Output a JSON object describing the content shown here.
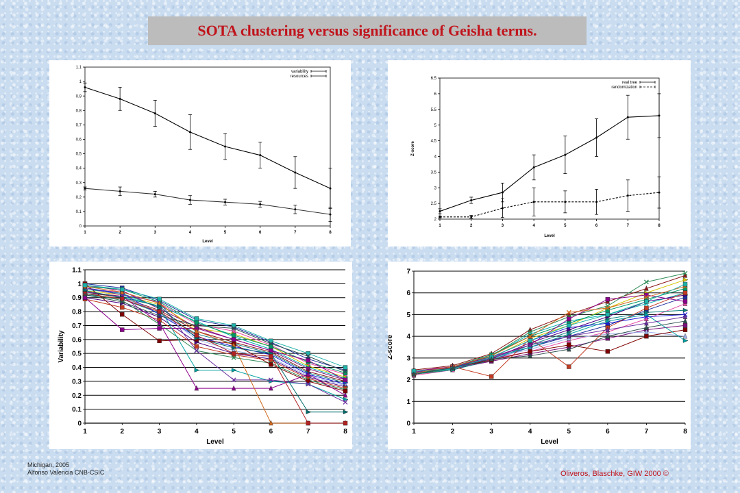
{
  "slide": {
    "title": "SOTA clustering versus significance of Geisha terms.",
    "footer_left_line1": "Michigan, 2005",
    "footer_left_line2": "Alfonso Valencia CNB-CSIC",
    "footer_right": "Oliveros, Blaschke, GIW 2000 ©"
  },
  "chart_data": [
    {
      "type": "line",
      "title": "",
      "xlabel": "Level",
      "ylabel": "",
      "x": [
        1,
        2,
        3,
        4,
        5,
        6,
        7,
        8
      ],
      "xlim": [
        1,
        8
      ],
      "ylim": [
        0,
        1.1
      ],
      "yticks": [
        "0",
        "0.1",
        "0.2",
        "0.3",
        "0.4",
        "0.5",
        "0.6",
        "0.7",
        "0.8",
        "0.9",
        "1",
        "1.1"
      ],
      "legend_position": "top-right",
      "grid": false,
      "series": [
        {
          "name": "variability",
          "values": [
            0.96,
            0.88,
            0.78,
            0.65,
            0.55,
            0.49,
            0.37,
            0.26
          ],
          "err": [
            0.03,
            0.08,
            0.09,
            0.12,
            0.09,
            0.09,
            0.11,
            0.14
          ],
          "color": "#000000"
        },
        {
          "name": "resources",
          "values": [
            0.26,
            0.24,
            0.22,
            0.18,
            0.165,
            0.15,
            0.115,
            0.08
          ],
          "err": [
            0.01,
            0.03,
            0.02,
            0.03,
            0.02,
            0.02,
            0.03,
            0.05
          ],
          "color": "#333333"
        }
      ]
    },
    {
      "type": "line",
      "title": "",
      "xlabel": "Level",
      "ylabel": "Z-score",
      "x": [
        1,
        2,
        3,
        4,
        5,
        6,
        7,
        8
      ],
      "xlim": [
        1,
        8
      ],
      "ylim": [
        2,
        6.5
      ],
      "yticks": [
        "2",
        "2.5",
        "3",
        "3.5",
        "4",
        "4.5",
        "5",
        "5.5",
        "6",
        "6.5"
      ],
      "legend_position": "top-right",
      "grid": false,
      "series": [
        {
          "name": "real tree",
          "values": [
            2.25,
            2.6,
            2.85,
            3.65,
            4.05,
            4.6,
            5.25,
            5.3
          ],
          "err": [
            0.08,
            0.1,
            0.3,
            0.4,
            0.6,
            0.6,
            0.7,
            0.7
          ],
          "color": "#000000",
          "dash": ""
        },
        {
          "name": "randomization",
          "values": [
            2.07,
            2.07,
            2.35,
            2.55,
            2.55,
            2.55,
            2.75,
            2.85
          ],
          "err": [
            0.03,
            0.05,
            0.3,
            0.45,
            0.35,
            0.4,
            0.5,
            0.5
          ],
          "color": "#000000",
          "dash": "3,2"
        }
      ]
    },
    {
      "type": "line",
      "title": "",
      "xlabel": "Level",
      "ylabel": "Variability",
      "x": [
        1,
        2,
        3,
        4,
        5,
        6,
        7,
        8
      ],
      "xlim": [
        1,
        8
      ],
      "ylim": [
        0,
        1.1
      ],
      "yticks": [
        "0",
        "0.1",
        "0.2",
        "0.3",
        "0.4",
        "0.5",
        "0.6",
        "0.7",
        "0.8",
        "0.9",
        "1",
        "1.1"
      ],
      "grid": true,
      "series": [
        {
          "values": [
            1.0,
            0.97,
            0.88,
            0.74,
            0.69,
            0.58,
            0.46,
            0.38
          ],
          "color": "#1f2f9e",
          "marker": "square"
        },
        {
          "values": [
            0.96,
            0.94,
            0.86,
            0.71,
            0.66,
            0.56,
            0.43,
            0.35
          ],
          "color": "#e64ca6",
          "marker": "triangle"
        },
        {
          "values": [
            0.95,
            0.92,
            0.85,
            0.68,
            0.64,
            0.55,
            0.41,
            0.33
          ],
          "color": "#d6c200",
          "marker": "tri-right"
        },
        {
          "values": [
            0.93,
            0.91,
            0.84,
            0.73,
            0.62,
            0.53,
            0.4,
            0.32
          ],
          "color": "#00b0b0",
          "marker": "x"
        },
        {
          "values": [
            0.99,
            0.95,
            0.82,
            0.69,
            0.6,
            0.52,
            0.39,
            0.31
          ],
          "color": "#7a0f7a",
          "marker": "square"
        },
        {
          "values": [
            0.94,
            0.9,
            0.81,
            0.66,
            0.58,
            0.51,
            0.37,
            0.3
          ],
          "color": "#8b1a1a",
          "marker": "triangle"
        },
        {
          "values": [
            0.92,
            0.89,
            0.79,
            0.64,
            0.57,
            0.5,
            0.36,
            0.29
          ],
          "color": "#0b7f7f",
          "marker": "tri-right"
        },
        {
          "values": [
            0.97,
            0.93,
            0.78,
            0.62,
            0.55,
            0.49,
            0.35,
            0.28
          ],
          "color": "#1c1cd9",
          "marker": "x"
        },
        {
          "values": [
            0.98,
            0.96,
            0.87,
            0.72,
            0.63,
            0.55,
            0.44,
            0.36
          ],
          "color": "#009966",
          "marker": "square"
        },
        {
          "values": [
            0.95,
            0.9,
            0.8,
            0.6,
            0.52,
            0.47,
            0.34,
            0.27
          ],
          "color": "#9fb2e8",
          "marker": "triangle"
        },
        {
          "values": [
            0.9,
            0.86,
            0.76,
            0.58,
            0.5,
            0.46,
            0.33,
            0.26
          ],
          "color": "#4b0082",
          "marker": "tri-right"
        },
        {
          "values": [
            0.89,
            0.83,
            0.74,
            0.55,
            0.49,
            0.45,
            0.32,
            0.25
          ],
          "color": "#c23b22",
          "marker": "square"
        },
        {
          "values": [
            0.93,
            0.88,
            0.71,
            0.52,
            0.47,
            0.43,
            0.31,
            0.24
          ],
          "color": "#2e8b57",
          "marker": "x"
        },
        {
          "values": [
            1.0,
            0.78,
            0.59,
            0.6,
            0.57,
            0.42,
            0.3,
            0.23
          ],
          "color": "#800000",
          "marker": "square"
        },
        {
          "values": [
            0.9,
            0.67,
            0.68,
            0.68,
            0.6,
            0.52,
            0.45,
            0.31
          ],
          "color": "#8b008b",
          "marker": "square"
        },
        {
          "values": [
            0.96,
            0.93,
            0.83,
            0.38,
            0.38,
            0.3,
            0.28,
            0.17
          ],
          "color": "#00a0a0",
          "marker": "tri-right"
        },
        {
          "values": [
            0.94,
            0.91,
            0.72,
            0.25,
            0.25,
            0.25,
            0.35,
            0.2
          ],
          "color": "#8b008b",
          "marker": "triangle"
        },
        {
          "values": [
            0.97,
            0.92,
            0.87,
            0.52,
            0.31,
            0.31,
            0.28,
            0.15
          ],
          "color": "#6b2fa0",
          "marker": "x"
        },
        {
          "values": [
            0.98,
            0.94,
            0.86,
            0.66,
            0.56,
            0.0,
            0.0,
            0.0
          ],
          "color": "#d2691e",
          "marker": "triangle"
        },
        {
          "values": [
            0.95,
            0.9,
            0.84,
            0.61,
            0.54,
            0.5,
            0.08,
            0.08
          ],
          "color": "#006b6b",
          "marker": "tri-right"
        },
        {
          "values": [
            0.93,
            0.89,
            0.8,
            0.63,
            0.5,
            0.48,
            0.0,
            0.0
          ],
          "color": "#b22222",
          "marker": "square"
        },
        {
          "values": [
            0.99,
            0.96,
            0.89,
            0.75,
            0.7,
            0.59,
            0.5,
            0.4
          ],
          "color": "#20b2aa",
          "marker": "square"
        },
        {
          "values": [
            0.92,
            0.87,
            0.77,
            0.7,
            0.68,
            0.57,
            0.48,
            0.37
          ],
          "color": "#2f4f4f",
          "marker": "x"
        }
      ]
    },
    {
      "type": "line",
      "title": "",
      "xlabel": "Level",
      "ylabel": "Z-score",
      "x": [
        1,
        2,
        3,
        4,
        5,
        6,
        7,
        8
      ],
      "xlim": [
        1,
        8
      ],
      "ylim": [
        0,
        7
      ],
      "yticks": [
        "0",
        "1",
        "2",
        "3",
        "4",
        "5",
        "6",
        "7"
      ],
      "grid": true,
      "series": [
        {
          "values": [
            2.3,
            2.5,
            2.9,
            3.5,
            4.0,
            4.5,
            5.2,
            5.8
          ],
          "color": "#1f2f9e",
          "marker": "square"
        },
        {
          "values": [
            2.2,
            2.45,
            2.95,
            3.3,
            3.8,
            4.2,
            4.8,
            5.5
          ],
          "color": "#e64ca6",
          "marker": "triangle"
        },
        {
          "values": [
            2.4,
            2.6,
            3.0,
            3.9,
            4.5,
            5.3,
            6.0,
            6.6
          ],
          "color": "#d6c200",
          "marker": "tri-right"
        },
        {
          "values": [
            2.35,
            2.55,
            3.1,
            4.1,
            4.7,
            5.0,
            5.5,
            6.0
          ],
          "color": "#00b0b0",
          "marker": "x"
        },
        {
          "values": [
            2.3,
            2.5,
            2.85,
            3.2,
            3.5,
            3.9,
            4.3,
            4.5
          ],
          "color": "#7a0f7a",
          "marker": "square"
        },
        {
          "values": [
            2.45,
            2.65,
            3.2,
            4.3,
            5.0,
            5.6,
            6.2,
            6.8
          ],
          "color": "#8b1a1a",
          "marker": "triangle"
        },
        {
          "values": [
            2.25,
            2.45,
            2.9,
            3.6,
            4.2,
            4.8,
            5.1,
            5.2
          ],
          "color": "#0b7f7f",
          "marker": "tri-right"
        },
        {
          "values": [
            2.35,
            2.55,
            3.05,
            3.8,
            4.4,
            4.6,
            4.9,
            5.0
          ],
          "color": "#1c1cd9",
          "marker": "x"
        },
        {
          "values": [
            2.3,
            2.6,
            3.15,
            4.0,
            4.6,
            5.2,
            5.7,
            6.2
          ],
          "color": "#009966",
          "marker": "square"
        },
        {
          "values": [
            2.4,
            2.5,
            3.0,
            3.4,
            3.9,
            4.1,
            4.2,
            4.0
          ],
          "color": "#9fb2e8",
          "marker": "triangle"
        },
        {
          "values": [
            2.3,
            2.55,
            2.95,
            3.7,
            4.3,
            4.9,
            5.6,
            5.9
          ],
          "color": "#4b0082",
          "marker": "tri-right"
        },
        {
          "values": [
            2.35,
            2.6,
            2.15,
            3.9,
            2.6,
            4.4,
            5.3,
            6.0
          ],
          "color": "#c23b22",
          "marker": "square"
        },
        {
          "values": [
            2.25,
            2.5,
            3.1,
            4.2,
            4.9,
            5.4,
            6.5,
            6.9
          ],
          "color": "#2e8b57",
          "marker": "x"
        },
        {
          "values": [
            2.3,
            2.55,
            2.9,
            3.3,
            3.6,
            3.3,
            4.0,
            4.3
          ],
          "color": "#800000",
          "marker": "square"
        },
        {
          "values": [
            2.4,
            2.6,
            3.05,
            3.6,
            4.8,
            5.7,
            5.9,
            5.6
          ],
          "color": "#8b008b",
          "marker": "square"
        },
        {
          "values": [
            2.3,
            2.5,
            3.0,
            3.5,
            4.1,
            4.7,
            5.0,
            3.8
          ],
          "color": "#00a0a0",
          "marker": "tri-right"
        },
        {
          "values": [
            2.35,
            2.55,
            3.0,
            3.6,
            4.0,
            4.3,
            4.6,
            4.9
          ],
          "color": "#6b2fa0",
          "marker": "triangle"
        },
        {
          "values": [
            2.3,
            2.6,
            3.1,
            4.0,
            5.1,
            5.3,
            5.8,
            6.3
          ],
          "color": "#d2691e",
          "marker": "x"
        },
        {
          "values": [
            2.4,
            2.5,
            3.05,
            3.8,
            4.5,
            5.0,
            5.6,
            6.4
          ],
          "color": "#20b2aa",
          "marker": "square"
        },
        {
          "values": [
            2.25,
            2.55,
            2.95,
            3.1,
            3.4,
            4.0,
            4.4,
            4.7
          ],
          "color": "#2f4f4f",
          "marker": "triangle"
        }
      ]
    }
  ]
}
